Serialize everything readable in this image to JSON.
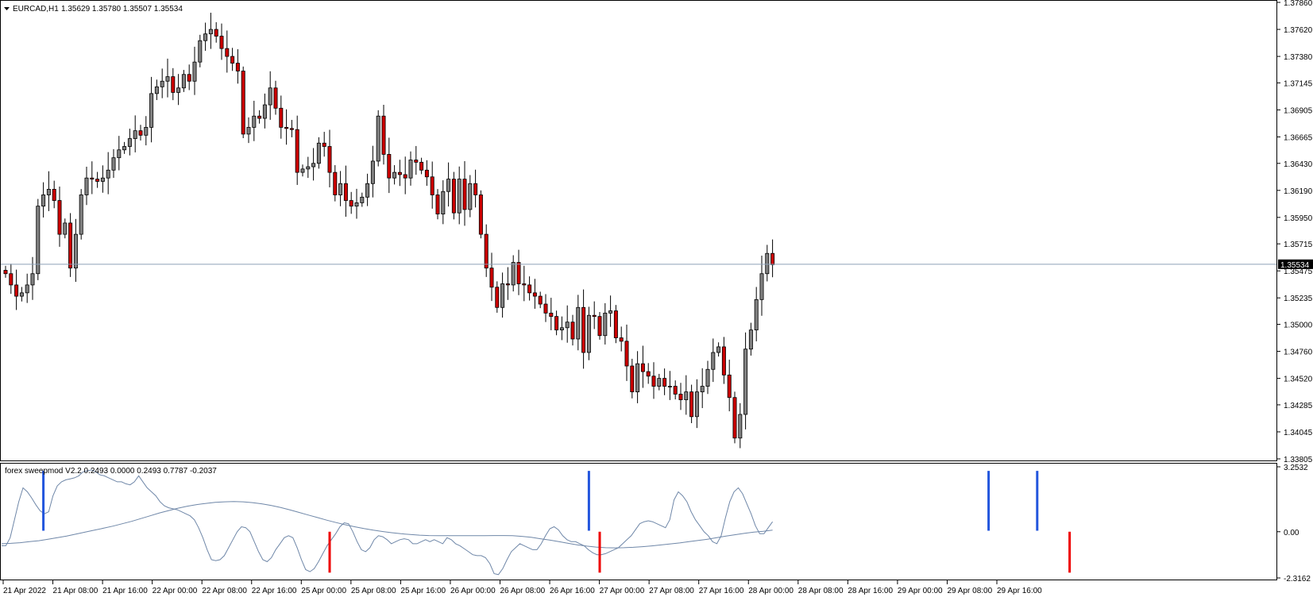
{
  "header": {
    "symbol_label": "EURCAD,H1",
    "ohlc_label": "1.35629 1.35780 1.35507 1.35534",
    "dropdown_icon": "triangle-down-icon"
  },
  "indicator": {
    "label": "forex sweepmod V2.2 0.2493 0.0000 0.2493 0.7787 -0.2037"
  },
  "colors": {
    "bull_body": "#808080",
    "bear_body": "#cc0000",
    "wick": "#000000",
    "price_line": "#8da0b8",
    "signal_up": "#2255dd",
    "signal_down": "#ee0000",
    "osc_line": "#6f87a8"
  },
  "chart_data": [
    {
      "type": "candlestick",
      "symbol": "EURCAD",
      "timeframe": "H1",
      "ylim": [
        1.33805,
        1.3786
      ],
      "y_ticks": [
        "1.37860",
        "1.37620",
        "1.37380",
        "1.37145",
        "1.36905",
        "1.36665",
        "1.36430",
        "1.36190",
        "1.35950",
        "1.35715",
        "1.35475",
        "1.35235",
        "1.35000",
        "1.34760",
        "1.34520",
        "1.34285",
        "1.34045",
        "1.33805"
      ],
      "current_price": "1.35534",
      "x_ticks": [
        "21 Apr 2022",
        "21 Apr 08:00",
        "21 Apr 16:00",
        "22 Apr 00:00",
        "22 Apr 08:00",
        "22 Apr 16:00",
        "25 Apr 00:00",
        "25 Apr 08:00",
        "25 Apr 16:00",
        "26 Apr 00:00",
        "26 Apr 08:00",
        "26 Apr 16:00",
        "27 Apr 00:00",
        "27 Apr 08:00",
        "27 Apr 16:00",
        "28 Apr 00:00",
        "28 Apr 08:00",
        "28 Apr 16:00",
        "29 Apr 00:00",
        "29 Apr 08:00",
        "29 Apr 16:00"
      ],
      "close": [
        1.3545,
        1.3535,
        1.3525,
        1.3528,
        1.3535,
        1.3545,
        1.3605,
        1.3615,
        1.362,
        1.361,
        1.358,
        1.359,
        1.355,
        1.358,
        1.3615,
        1.363,
        1.3629,
        1.3627,
        1.363,
        1.3637,
        1.3648,
        1.3655,
        1.3658,
        1.3665,
        1.3672,
        1.3668,
        1.3675,
        1.3705,
        1.3711,
        1.3716,
        1.372,
        1.3706,
        1.371,
        1.3722,
        1.3716,
        1.3733,
        1.3752,
        1.3758,
        1.3762,
        1.3756,
        1.3745,
        1.3738,
        1.3732,
        1.3725,
        1.3669,
        1.3675,
        1.3685,
        1.3683,
        1.3695,
        1.371,
        1.3692,
        1.3675,
        1.3674,
        1.3673,
        1.3635,
        1.3638,
        1.364,
        1.3643,
        1.3661,
        1.3658,
        1.3635,
        1.3615,
        1.3625,
        1.361,
        1.3605,
        1.3608,
        1.3613,
        1.3625,
        1.3645,
        1.3685,
        1.3651,
        1.363,
        1.3635,
        1.3633,
        1.363,
        1.3646,
        1.3644,
        1.3637,
        1.3631,
        1.3615,
        1.3598,
        1.3618,
        1.3629,
        1.3599,
        1.3629,
        1.3602,
        1.3625,
        1.3615,
        1.358,
        1.355,
        1.3533,
        1.3515,
        1.3536,
        1.3535,
        1.3555,
        1.3536,
        1.3535,
        1.3528,
        1.3525,
        1.3518,
        1.351,
        1.3507,
        1.3495,
        1.3497,
        1.3502,
        1.3487,
        1.3515,
        1.3475,
        1.3508,
        1.3507,
        1.349,
        1.351,
        1.3512,
        1.3488,
        1.3485,
        1.3463,
        1.344,
        1.3465,
        1.3458,
        1.3454,
        1.3445,
        1.3452,
        1.3445,
        1.3445,
        1.3438,
        1.3433,
        1.344,
        1.3418,
        1.344,
        1.3445,
        1.346,
        1.3475,
        1.348,
        1.3455,
        1.3435,
        1.3399,
        1.342,
        1.3478,
        1.3495,
        1.3522,
        1.3545,
        1.3563,
        1.3553
      ],
      "series": [
        {
          "name": "",
          "ylim": [
            -2.3162,
            3.2532
          ],
          "y_ticks": [
            "3.2532",
            "0.00",
            "-2.3162"
          ],
          "values": [
            -0.7,
            -0.7,
            -0.3,
            0.6,
            1.5,
            2.2,
            2.0,
            1.7,
            1.35,
            1.05,
            0.9,
            1.0,
            1.8,
            2.3,
            2.5,
            2.6,
            2.65,
            2.7,
            2.8,
            3.0,
            3.05,
            3.1,
            3.0,
            2.85,
            2.8,
            2.7,
            2.6,
            2.5,
            2.5,
            2.4,
            2.35,
            2.5,
            2.8,
            2.5,
            2.2,
            2.0,
            1.8,
            1.5,
            1.3,
            1.2,
            1.15,
            1.1,
            1.0,
            0.9,
            0.8,
            0.6,
            0.2,
            -0.3,
            -0.9,
            -1.4,
            -1.45,
            -1.4,
            -1.2,
            -0.8,
            -0.4,
            0.0,
            0.25,
            0.2,
            0.0,
            -0.5,
            -1.0,
            -1.4,
            -1.5,
            -1.3,
            -0.9,
            -0.6,
            -0.3,
            -0.2,
            -0.3,
            -0.8,
            -1.4,
            -1.9,
            -2.0,
            -1.85,
            -1.5,
            -1.1,
            -0.7,
            -0.4,
            -0.1,
            0.25,
            0.45,
            0.4,
            0.0,
            -0.5,
            -0.9,
            -1.0,
            -0.8,
            -0.4,
            -0.2,
            -0.25,
            -0.4,
            -0.6,
            -0.5,
            -0.4,
            -0.35,
            -0.4,
            -0.6,
            -0.6,
            -0.5,
            -0.4,
            -0.5,
            -0.4,
            -0.5,
            -0.6,
            -0.3,
            -0.4,
            -0.6,
            -0.7,
            -0.85,
            -1.0,
            -1.15,
            -1.2,
            -1.2,
            -1.3,
            -1.6,
            -2.1,
            -2.15,
            -1.85,
            -1.4,
            -1.0,
            -0.8,
            -0.6,
            -0.7,
            -0.8,
            -0.9,
            -0.9,
            -0.6,
            -0.2,
            0.15,
            0.25,
            0.1,
            -0.2,
            -0.4,
            -0.5,
            -0.5,
            -0.6,
            -0.7,
            -0.9,
            -1.05,
            -1.15,
            -1.15,
            -1.1,
            -1.0,
            -0.9,
            -0.8,
            -0.6,
            -0.4,
            -0.2,
            0.1,
            0.4,
            0.5,
            0.55,
            0.5,
            0.4,
            0.3,
            0.2,
            0.6,
            1.6,
            2.0,
            1.8,
            1.5,
            1.0,
            0.6,
            0.3,
            0.0,
            -0.2,
            -0.5,
            -0.6,
            -0.2,
            0.7,
            1.5,
            2.0,
            2.2,
            1.9,
            1.4,
            0.9,
            0.3,
            -0.1,
            -0.1,
            0.2,
            0.5
          ]
        },
        {
          "name": "",
          "values": [
            -0.6,
            -0.58,
            -0.55,
            -0.5,
            -0.45,
            -0.38,
            -0.3,
            -0.22,
            -0.12,
            -0.02,
            0.08,
            0.18,
            0.28,
            0.4,
            0.52,
            0.66,
            0.8,
            0.94,
            1.06,
            1.18,
            1.28,
            1.36,
            1.42,
            1.47,
            1.5,
            1.51,
            1.5,
            1.46,
            1.4,
            1.32,
            1.22,
            1.1,
            0.97,
            0.84,
            0.71,
            0.58,
            0.46,
            0.35,
            0.25,
            0.16,
            0.08,
            0.01,
            -0.05,
            -0.1,
            -0.14,
            -0.17,
            -0.19,
            -0.2,
            -0.2,
            -0.2,
            -0.2,
            -0.2,
            -0.2,
            -0.19,
            -0.19,
            -0.2,
            -0.23,
            -0.28,
            -0.35,
            -0.42,
            -0.5,
            -0.58,
            -0.66,
            -0.72,
            -0.77,
            -0.8,
            -0.81,
            -0.8,
            -0.78,
            -0.75,
            -0.71,
            -0.66,
            -0.61,
            -0.56,
            -0.5,
            -0.44,
            -0.38,
            -0.3,
            -0.22,
            -0.15,
            -0.08,
            -0.02,
            0.02,
            0.08
          ]
        }
      ],
      "signals_up_at": [
        7,
        108,
        182,
        191
      ],
      "signals_down_at": [
        60,
        110,
        197
      ]
    }
  ]
}
